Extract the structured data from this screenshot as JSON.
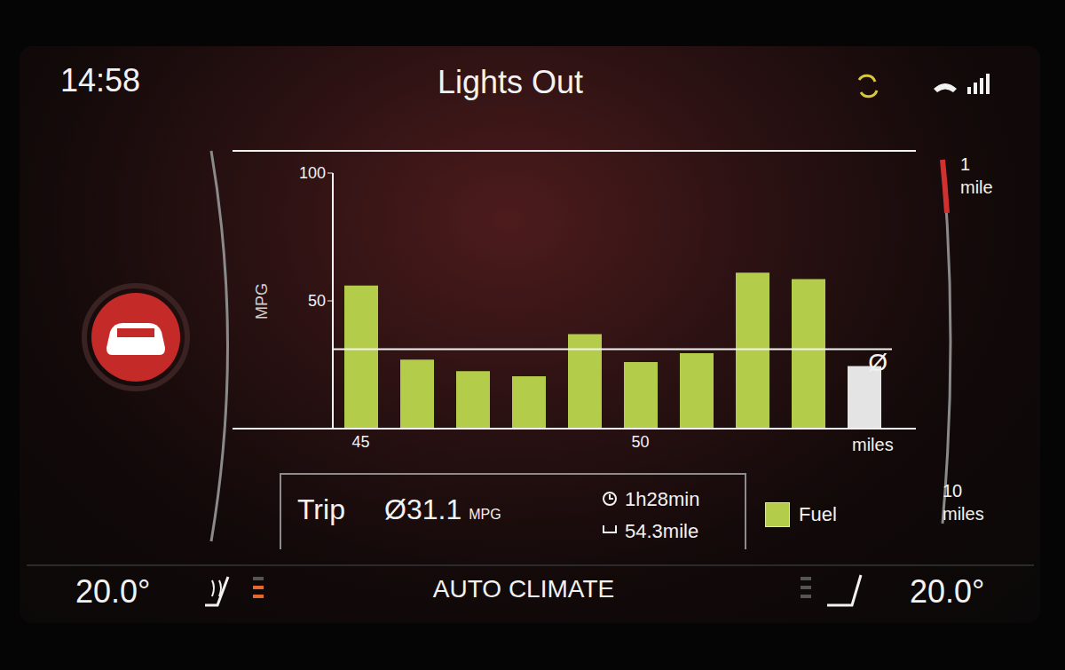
{
  "chart_data": {
    "type": "bar",
    "categories": [
      "45",
      null,
      null,
      null,
      null,
      "50",
      null,
      null,
      null,
      null
    ],
    "values": [
      56,
      27,
      22.5,
      20.5,
      37,
      26,
      29.5,
      61,
      58.5,
      24.5
    ],
    "colors": [
      "#b3cc4a",
      "#b3cc4a",
      "#b3cc4a",
      "#b3cc4a",
      "#b3cc4a",
      "#b3cc4a",
      "#b3cc4a",
      "#b3cc4a",
      "#b3cc4a",
      "#e4e4e4"
    ],
    "ylim": [
      0,
      100
    ],
    "yticks": [
      50,
      100
    ],
    "y_label": "MPG",
    "x_label": "miles",
    "average": 31.1,
    "average_label": "Ø",
    "legend_label": "Fuel",
    "grid": false,
    "data_labels": false
  },
  "screen": {
    "time": "14:58",
    "title": "Lights Out",
    "trip": {
      "label": "Trip",
      "unit": "MPG",
      "duration": "1h28min",
      "distance": "54.3mile"
    },
    "scale": {
      "top": "1 mile",
      "bottom": "10 miles"
    },
    "climate": {
      "left": "20.0°",
      "center": "AUTO CLIMATE",
      "right": "20.0°"
    }
  }
}
